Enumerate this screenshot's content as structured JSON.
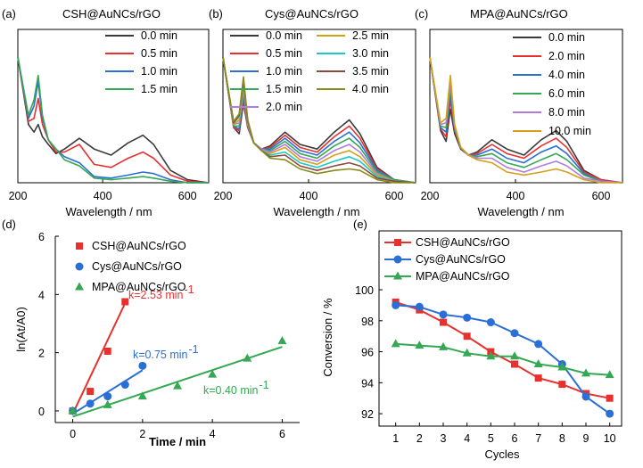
{
  "chart_data": [
    {
      "panel": "(a)",
      "type": "line",
      "title": "CSH@AuNCs/rGO",
      "xlabel": "Wavelength / nm",
      "ylabel": "",
      "xlim": [
        200,
        650
      ],
      "ylim": [
        0,
        1
      ],
      "xticks": [
        200,
        400,
        600
      ],
      "x": [
        200,
        225,
        238,
        248,
        258,
        272,
        290,
        310,
        345,
        380,
        420,
        460,
        495,
        520,
        560,
        600,
        650
      ],
      "series": [
        {
          "name": "0.0 min",
          "color": "#3a3a3a",
          "values": [
            0.82,
            0.38,
            0.33,
            0.38,
            0.3,
            0.25,
            0.19,
            0.22,
            0.29,
            0.22,
            0.18,
            0.26,
            0.31,
            0.25,
            0.08,
            0.02,
            0.0
          ]
        },
        {
          "name": "0.5 min",
          "color": "#e8312f",
          "values": [
            0.82,
            0.4,
            0.42,
            0.55,
            0.38,
            0.28,
            0.2,
            0.2,
            0.25,
            0.12,
            0.1,
            0.16,
            0.2,
            0.16,
            0.05,
            0.01,
            0.0
          ]
        },
        {
          "name": "1.0 min",
          "color": "#2a6fd6",
          "values": [
            0.82,
            0.42,
            0.5,
            0.66,
            0.42,
            0.28,
            0.22,
            0.17,
            0.13,
            0.04,
            0.03,
            0.05,
            0.07,
            0.06,
            0.02,
            0.0,
            0.0
          ]
        },
        {
          "name": "1.5 min",
          "color": "#34a853",
          "values": [
            0.82,
            0.44,
            0.54,
            0.7,
            0.44,
            0.28,
            0.22,
            0.15,
            0.11,
            0.03,
            0.02,
            0.03,
            0.04,
            0.03,
            0.01,
            0.0,
            0.0
          ]
        }
      ]
    },
    {
      "panel": "(b)",
      "type": "line",
      "title": "Cys@AuNCs/rGO",
      "xlabel": "Wavelength / nm",
      "ylabel": "",
      "xlim": [
        200,
        650
      ],
      "ylim": [
        0,
        1
      ],
      "xticks": [
        200,
        400,
        600
      ],
      "x": [
        200,
        225,
        238,
        248,
        258,
        272,
        290,
        310,
        345,
        380,
        420,
        460,
        495,
        520,
        560,
        600,
        650
      ],
      "series": [
        {
          "name": "0.0 min",
          "color": "#3a3a3a",
          "values": [
            0.82,
            0.36,
            0.32,
            0.52,
            0.36,
            0.26,
            0.22,
            0.24,
            0.33,
            0.25,
            0.22,
            0.33,
            0.41,
            0.32,
            0.1,
            0.02,
            0.0
          ]
        },
        {
          "name": "0.5 min",
          "color": "#e8312f",
          "values": [
            0.82,
            0.36,
            0.34,
            0.54,
            0.36,
            0.26,
            0.22,
            0.23,
            0.31,
            0.23,
            0.2,
            0.3,
            0.37,
            0.29,
            0.09,
            0.02,
            0.0
          ]
        },
        {
          "name": "1.0 min",
          "color": "#2a6fd6",
          "values": [
            0.82,
            0.37,
            0.35,
            0.57,
            0.37,
            0.26,
            0.22,
            0.22,
            0.29,
            0.21,
            0.18,
            0.27,
            0.33,
            0.26,
            0.08,
            0.02,
            0.0
          ]
        },
        {
          "name": "1.5 min",
          "color": "#34a853",
          "values": [
            0.82,
            0.37,
            0.37,
            0.59,
            0.38,
            0.26,
            0.22,
            0.21,
            0.27,
            0.19,
            0.16,
            0.24,
            0.29,
            0.23,
            0.07,
            0.02,
            0.0
          ]
        },
        {
          "name": "2.0 min",
          "color": "#b27be0",
          "values": [
            0.82,
            0.38,
            0.39,
            0.61,
            0.38,
            0.26,
            0.22,
            0.2,
            0.25,
            0.17,
            0.14,
            0.21,
            0.25,
            0.2,
            0.06,
            0.01,
            0.0
          ]
        },
        {
          "name": "2.5 min",
          "color": "#d4a017",
          "values": [
            0.82,
            0.38,
            0.41,
            0.63,
            0.39,
            0.26,
            0.21,
            0.19,
            0.23,
            0.15,
            0.12,
            0.18,
            0.21,
            0.17,
            0.05,
            0.01,
            0.0
          ]
        },
        {
          "name": "3.0 min",
          "color": "#1cc8c8",
          "values": [
            0.82,
            0.39,
            0.43,
            0.65,
            0.4,
            0.26,
            0.21,
            0.18,
            0.2,
            0.13,
            0.1,
            0.14,
            0.17,
            0.14,
            0.04,
            0.01,
            0.0
          ]
        },
        {
          "name": "3.5 min",
          "color": "#8b4a3c",
          "values": [
            0.82,
            0.39,
            0.44,
            0.67,
            0.4,
            0.26,
            0.21,
            0.17,
            0.18,
            0.11,
            0.08,
            0.11,
            0.13,
            0.11,
            0.03,
            0.01,
            0.0
          ]
        },
        {
          "name": "4.0 min",
          "color": "#8a8a1a",
          "values": [
            0.82,
            0.4,
            0.45,
            0.69,
            0.41,
            0.26,
            0.21,
            0.16,
            0.15,
            0.09,
            0.06,
            0.08,
            0.09,
            0.08,
            0.02,
            0.0,
            0.0
          ]
        }
      ]
    },
    {
      "panel": "(c)",
      "type": "line",
      "title": "MPA@AuNCs/rGO",
      "xlabel": "Wavelength / nm",
      "ylabel": "",
      "xlim": [
        200,
        650
      ],
      "ylim": [
        0,
        1
      ],
      "xticks": [
        200,
        400,
        600
      ],
      "x": [
        200,
        225,
        238,
        248,
        258,
        272,
        290,
        310,
        345,
        380,
        420,
        460,
        495,
        520,
        560,
        600,
        650
      ],
      "series": [
        {
          "name": "0.0 min",
          "color": "#3a3a3a",
          "values": [
            0.82,
            0.34,
            0.27,
            0.48,
            0.32,
            0.22,
            0.18,
            0.2,
            0.28,
            0.22,
            0.18,
            0.28,
            0.34,
            0.27,
            0.08,
            0.02,
            0.0
          ]
        },
        {
          "name": "2.0 min",
          "color": "#e8312f",
          "values": [
            0.82,
            0.35,
            0.3,
            0.54,
            0.34,
            0.23,
            0.18,
            0.19,
            0.25,
            0.19,
            0.16,
            0.24,
            0.29,
            0.23,
            0.07,
            0.02,
            0.0
          ]
        },
        {
          "name": "4.0 min",
          "color": "#2a6fd6",
          "values": [
            0.82,
            0.36,
            0.33,
            0.58,
            0.35,
            0.23,
            0.18,
            0.18,
            0.22,
            0.16,
            0.13,
            0.2,
            0.24,
            0.19,
            0.06,
            0.01,
            0.0
          ]
        },
        {
          "name": "6.0 min",
          "color": "#34a853",
          "values": [
            0.82,
            0.37,
            0.36,
            0.62,
            0.36,
            0.23,
            0.18,
            0.17,
            0.19,
            0.13,
            0.1,
            0.15,
            0.19,
            0.15,
            0.05,
            0.01,
            0.0
          ]
        },
        {
          "name": "8.0 min",
          "color": "#b27be0",
          "values": [
            0.82,
            0.38,
            0.39,
            0.66,
            0.37,
            0.23,
            0.18,
            0.16,
            0.16,
            0.1,
            0.07,
            0.11,
            0.14,
            0.11,
            0.03,
            0.01,
            0.0
          ]
        },
        {
          "name": "10.0 min",
          "color": "#d4a017",
          "values": [
            0.82,
            0.39,
            0.42,
            0.7,
            0.38,
            0.23,
            0.18,
            0.15,
            0.13,
            0.07,
            0.05,
            0.07,
            0.09,
            0.07,
            0.02,
            0.0,
            0.0
          ]
        }
      ]
    },
    {
      "panel": "(d)",
      "type": "scatter",
      "title": "",
      "xlabel": "Time / min",
      "ylabel": "ln(At/A0)",
      "xlim": [
        -0.5,
        6.5
      ],
      "ylim": [
        -0.4,
        6
      ],
      "xticks": [
        0,
        2,
        4,
        6
      ],
      "yticks": [
        0,
        2,
        4,
        6
      ],
      "series": [
        {
          "name": "CSH@AuNCs/rGO",
          "color": "#e8312f",
          "marker": "square",
          "x": [
            0,
            0.5,
            1.0,
            1.5
          ],
          "y": [
            0,
            0.67,
            2.05,
            3.75
          ],
          "fit": [
            [
              0,
              -0.1
            ],
            [
              1.5,
              3.7
            ]
          ],
          "rate": "k=2.53 min",
          "rate_unit": "-1"
        },
        {
          "name": "Cys@AuNCs/rGO",
          "color": "#2a6fd6",
          "marker": "circle",
          "x": [
            0,
            0.5,
            1.0,
            1.5,
            2.0
          ],
          "y": [
            0,
            0.25,
            0.5,
            0.9,
            1.55
          ],
          "fit": [
            [
              0,
              -0.1
            ],
            [
              2.0,
              1.4
            ]
          ],
          "rate": "k=0.75 min",
          "rate_unit": "-1"
        },
        {
          "name": "MPA@AuNCs/rGO",
          "color": "#34a853",
          "marker": "triangle",
          "x": [
            0,
            1,
            2,
            3,
            4,
            5,
            6
          ],
          "y": [
            0,
            0.2,
            0.5,
            0.85,
            1.25,
            1.8,
            2.4
          ],
          "fit": [
            [
              0,
              -0.2
            ],
            [
              6,
              2.2
            ]
          ],
          "rate": "k=0.40 min",
          "rate_unit": "-1"
        }
      ]
    },
    {
      "panel": "(e)",
      "type": "line",
      "title": "",
      "xlabel": "Cycles",
      "ylabel": "Conversion / %",
      "xlim": [
        0.3,
        10.5
      ],
      "ylim": [
        91.2,
        103.8
      ],
      "xticks": [
        1,
        2,
        3,
        4,
        5,
        6,
        7,
        8,
        9,
        10
      ],
      "yticks": [
        92,
        94,
        96,
        98,
        100
      ],
      "categories": [
        1,
        2,
        3,
        4,
        5,
        6,
        7,
        8,
        9,
        10
      ],
      "series": [
        {
          "name": "CSH@AuNCs/rGO",
          "color": "#e8312f",
          "marker": "square",
          "values": [
            99.2,
            98.7,
            97.9,
            97.0,
            96.0,
            95.2,
            94.3,
            93.9,
            93.3,
            93.0
          ]
        },
        {
          "name": "Cys@AuNCs/rGO",
          "color": "#2a6fd6",
          "marker": "circle",
          "values": [
            99.0,
            98.9,
            98.4,
            98.2,
            97.9,
            97.2,
            96.5,
            95.2,
            93.1,
            92.0
          ]
        },
        {
          "name": "MPA@AuNCs/rGO",
          "color": "#34a853",
          "marker": "triangle",
          "values": [
            96.5,
            96.4,
            96.3,
            95.9,
            95.7,
            95.7,
            95.2,
            95.0,
            94.6,
            94.5
          ]
        }
      ]
    }
  ]
}
